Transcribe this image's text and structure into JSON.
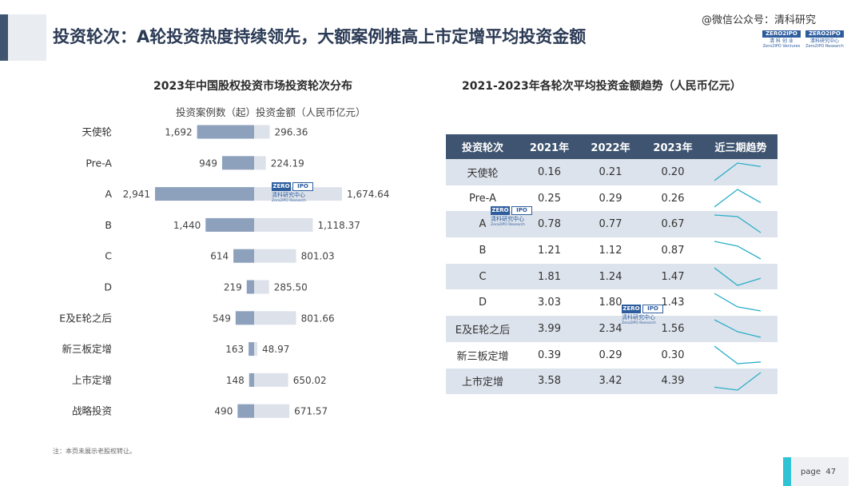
{
  "header": {
    "title": "投资轮次：A轮投资热度持续领先，大额案例推高上市定增平均投资金额",
    "watermark": "@微信公众号：清科研究",
    "logo1": {
      "brand": "ZERO2IPO",
      "cn": "清 科 创 业",
      "en": "Zero2IPO Ventures"
    },
    "logo2": {
      "brand": "ZERO2IPO",
      "cn": "清科研究中心",
      "en": "Zero2IPO Research"
    }
  },
  "overlay_logo": {
    "zero": "ZERO",
    "ipo": "IPO",
    "cn": "清科研究中心",
    "en": "Zero2IPO Research"
  },
  "chart_data": [
    {
      "type": "bar",
      "title": "2023年中国股权投资市场投资轮次分布",
      "categories": [
        "天使轮",
        "Pre-A",
        "A",
        "B",
        "C",
        "D",
        "E及E轮之后",
        "新三板定增",
        "上市定增",
        "战略投资"
      ],
      "series": [
        {
          "name": "投资案例数（起）",
          "values": [
            1692,
            949,
            2941,
            1440,
            614,
            219,
            549,
            163,
            148,
            490
          ],
          "labels": [
            "1,692",
            "949",
            "2,941",
            "1,440",
            "614",
            "219",
            "549",
            "163",
            "148",
            "490"
          ],
          "color": "#8da0bc"
        },
        {
          "name": "投资金额（人民币亿元）",
          "values": [
            296.36,
            224.19,
            1674.64,
            1118.37,
            801.03,
            285.5,
            801.66,
            48.97,
            650.02,
            671.57
          ],
          "labels": [
            "296.36",
            "224.19",
            "1,674.64",
            "1,118.37",
            "801.03",
            "285.50",
            "801.66",
            "48.97",
            "650.02",
            "671.57"
          ],
          "color": "#dde2ea"
        }
      ],
      "legend_placement": "top",
      "grid": false
    },
    {
      "type": "table",
      "title": "2021-2023年各轮次平均投资金额趋势（人民币亿元）",
      "columns": [
        "投资轮次",
        "2021年",
        "2022年",
        "2023年",
        "近三期趋势"
      ],
      "rows": [
        {
          "round": "天使轮",
          "v2021": "0.16",
          "v2022": "0.21",
          "v2023": "0.20"
        },
        {
          "round": "Pre-A",
          "v2021": "0.25",
          "v2022": "0.29",
          "v2023": "0.26"
        },
        {
          "round": "A",
          "v2021": "0.78",
          "v2022": "0.77",
          "v2023": "0.67"
        },
        {
          "round": "B",
          "v2021": "1.21",
          "v2022": "1.12",
          "v2023": "0.87"
        },
        {
          "round": "C",
          "v2021": "1.81",
          "v2022": "1.24",
          "v2023": "1.47"
        },
        {
          "round": "D",
          "v2021": "3.03",
          "v2022": "1.80",
          "v2023": "1.43"
        },
        {
          "round": "E及E轮之后",
          "v2021": "3.99",
          "v2022": "2.34",
          "v2023": "1.56"
        },
        {
          "round": "新三板定增",
          "v2021": "0.39",
          "v2022": "0.29",
          "v2023": "0.30"
        },
        {
          "round": "上市定增",
          "v2021": "3.58",
          "v2022": "3.42",
          "v2023": "4.39"
        }
      ],
      "sparkline_color": "#2aaec7"
    }
  ],
  "footer": {
    "note": "注：本页未展示老股权转让。",
    "page_label": "page",
    "page_num": "47"
  }
}
